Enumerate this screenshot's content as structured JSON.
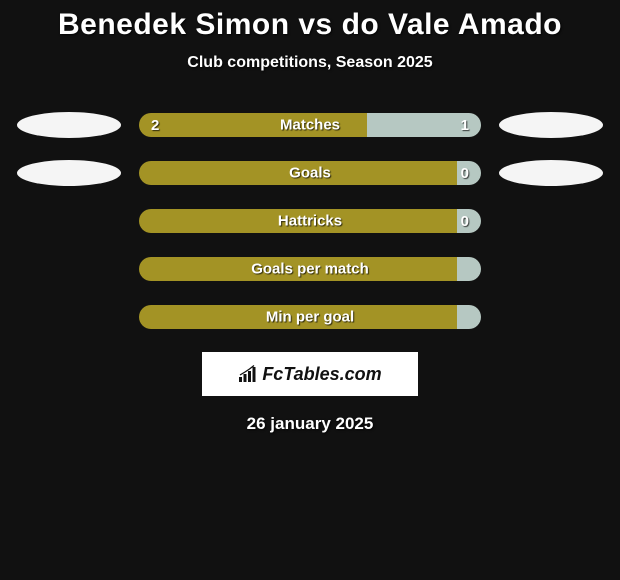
{
  "background_color": "#111111",
  "text_color": "#ffffff",
  "title": "Benedek Simon vs do Vale Amado",
  "title_fontsize": 30,
  "subtitle": "Club competitions, Season 2025",
  "subtitle_fontsize": 16,
  "date": "26 january 2025",
  "logo_text": "FcTables.com",
  "ellipse_color": "#f5f5f5",
  "stats": [
    {
      "label": "Matches",
      "left_value": "2",
      "right_value": "1",
      "left_pct": 66.67,
      "right_pct": 33.33,
      "left_color": "#a39325",
      "right_color": "#b6c8c2",
      "show_left_ellipse": true,
      "show_right_ellipse": true
    },
    {
      "label": "Goals",
      "left_value": "",
      "right_value": "0",
      "left_pct": 95,
      "right_pct": 5,
      "left_color": "#a39325",
      "right_color": "#b6c8c2",
      "show_left_ellipse": true,
      "show_right_ellipse": true
    },
    {
      "label": "Hattricks",
      "left_value": "",
      "right_value": "0",
      "left_pct": 95,
      "right_pct": 5,
      "left_color": "#a39325",
      "right_color": "#b6c8c2",
      "show_left_ellipse": false,
      "show_right_ellipse": false
    },
    {
      "label": "Goals per match",
      "left_value": "",
      "right_value": "",
      "left_pct": 100,
      "right_pct": 0,
      "left_color": "#a39325",
      "right_color": "#b6c8c2",
      "show_left_ellipse": false,
      "show_right_ellipse": false
    },
    {
      "label": "Min per goal",
      "left_value": "",
      "right_value": "",
      "left_pct": 100,
      "right_pct": 0,
      "left_color": "#a39325",
      "right_color": "#b6c8c2",
      "show_left_ellipse": false,
      "show_right_ellipse": false
    }
  ]
}
